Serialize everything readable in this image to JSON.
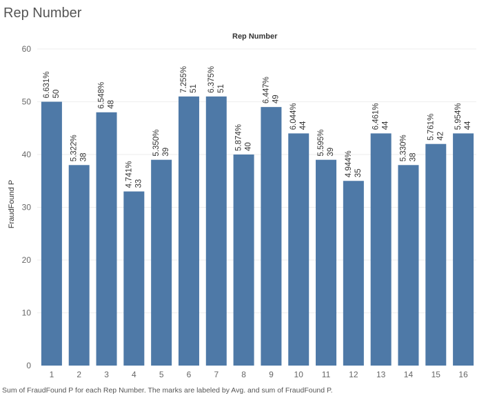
{
  "sheet_title": "Rep Number",
  "caption": "Sum of FraudFound P for each Rep Number.  The marks are labeled by Avg. and sum of FraudFound P.",
  "colors": {
    "bar": "#4e79a7",
    "grid": "#eeeeee"
  },
  "chart_data": {
    "type": "bar",
    "title": "Rep Number",
    "xlabel": "",
    "ylabel": "FraudFound P",
    "ylim": [
      0,
      60
    ],
    "yticks": [
      0,
      10,
      20,
      30,
      40,
      50,
      60
    ],
    "grid": true,
    "categories": [
      "1",
      "2",
      "3",
      "4",
      "5",
      "6",
      "7",
      "8",
      "9",
      "10",
      "11",
      "12",
      "13",
      "14",
      "15",
      "16"
    ],
    "values": [
      50,
      38,
      48,
      33,
      39,
      51,
      51,
      40,
      49,
      44,
      39,
      35,
      44,
      38,
      42,
      44
    ],
    "avg_labels": [
      "6.631%",
      "5.322%",
      "6.548%",
      "4.741%",
      "5.350%",
      "7.255%",
      "6.375%",
      "5.874%",
      "6.447%",
      "6.044%",
      "5.595%",
      "4.944%",
      "6.461%",
      "5.330%",
      "5.761%",
      "5.954%"
    ]
  }
}
